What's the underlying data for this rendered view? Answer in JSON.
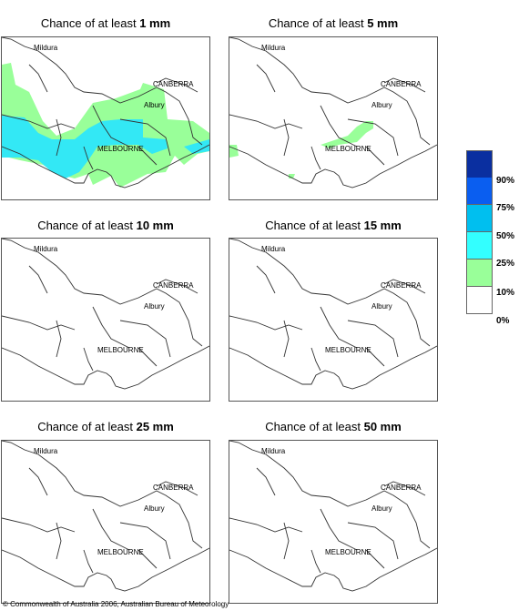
{
  "panels": [
    {
      "prefix": "Chance of at least ",
      "amount": "1 mm"
    },
    {
      "prefix": "Chance of at least ",
      "amount": "5 mm"
    },
    {
      "prefix": "Chance of at least ",
      "amount": "10 mm"
    },
    {
      "prefix": "Chance of at least ",
      "amount": "15 mm"
    },
    {
      "prefix": "Chance of at least ",
      "amount": "25 mm"
    },
    {
      "prefix": "Chance of at least ",
      "amount": "50 mm"
    }
  ],
  "places": {
    "mildura": "Mildura",
    "canberra": "CANBERRA",
    "albury": "Albury",
    "melbourne": "MELBOURNE"
  },
  "legend": {
    "ticks": [
      "90%",
      "75%",
      "50%",
      "25%",
      "10%",
      "0%"
    ],
    "colors": [
      "#0a2fa0",
      "#0a5ef0",
      "#00bfef",
      "#33ffff",
      "#99ff99",
      "#ffffff"
    ]
  },
  "footer": {
    "copyright": "© Commonwealth of Australia 2006, Australian Bureau of Meteorology"
  }
}
